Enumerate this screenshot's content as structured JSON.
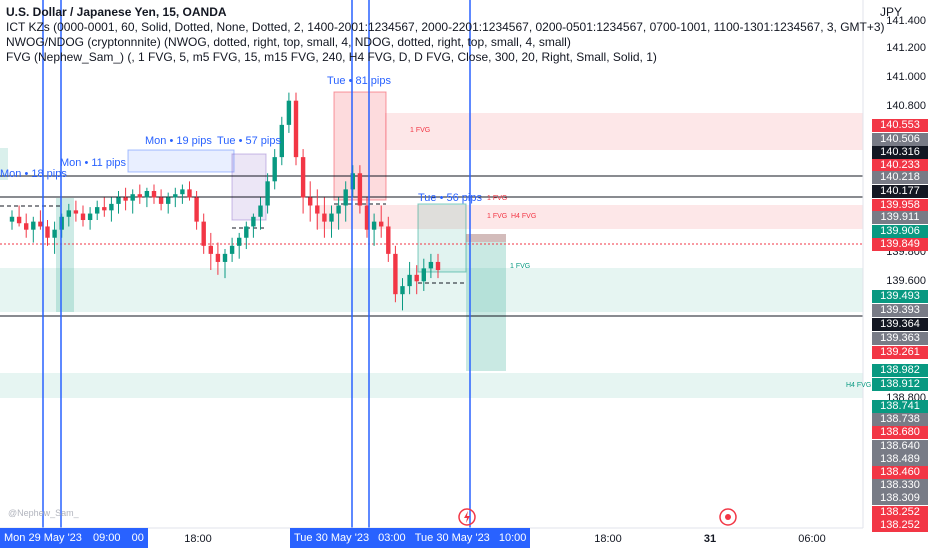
{
  "header": {
    "title": "U.S. Dollar / Japanese Yen, 15, OANDA",
    "line1": "ICT KZs (0000-0001, 60, Solid, Dotted, None, Dotted, 2, 1400-2001:1234567, 2000-2201:1234567, 0200-0501:1234567, 0700-1001, 1100-1301:1234567, 3, GMT+3)",
    "line2": "NWOG/NDOG (cryptonnnite) (NWOG, dotted, right, top, small, 4, NDOG, dotted, right, top, small, 4, small)",
    "line3": "FVG (Nephew_Sam_) (, 1 FVG, 5, m5 FVG, 15, m15 FVG, 240, H4 FVG, D, D FVG, Close, 300, 20, Right, Small, Solid, 1)",
    "currency": "JPY"
  },
  "watermark": "@Nephew_Sam_",
  "price_axis": {
    "ticks": [
      "141.400",
      "141.200",
      "141.000",
      "140.800",
      "139.800",
      "139.600",
      "138.800"
    ],
    "labels": [
      {
        "text": "140.553",
        "color": "#f23645"
      },
      {
        "text": "140.506",
        "color": "#787b86"
      },
      {
        "text": "140.316",
        "color": "#131722"
      },
      {
        "text": "140.233",
        "color": "#f23645"
      },
      {
        "text": "140.218",
        "color": "#787b86"
      },
      {
        "text": "140.177",
        "color": "#131722"
      },
      {
        "text": "139.958",
        "color": "#f23645"
      },
      {
        "text": "139.911",
        "color": "#787b86"
      },
      {
        "text": "139.906",
        "color": "#089981"
      },
      {
        "text": "139.849",
        "color": "#f23645"
      },
      {
        "text": "139.493",
        "color": "#089981"
      },
      {
        "text": "139.393",
        "color": "#787b86"
      },
      {
        "text": "139.364",
        "color": "#131722"
      },
      {
        "text": "139.363",
        "color": "#787b86"
      },
      {
        "text": "139.261",
        "color": "#f23645"
      },
      {
        "text": "138.982",
        "color": "#089981"
      },
      {
        "text": "138.912",
        "color": "#089981"
      },
      {
        "text": "138.741",
        "color": "#089981"
      },
      {
        "text": "138.738",
        "color": "#787b86"
      },
      {
        "text": "138.680",
        "color": "#f23645"
      },
      {
        "text": "138.640",
        "color": "#787b86"
      },
      {
        "text": "138.489",
        "color": "#787b86"
      },
      {
        "text": "138.460",
        "color": "#f23645"
      },
      {
        "text": "138.330",
        "color": "#787b86"
      },
      {
        "text": "138.309",
        "color": "#787b86"
      },
      {
        "text": "138.252",
        "color": "#f23645"
      },
      {
        "text": "138.252",
        "color": "#f23645"
      }
    ]
  },
  "time_axis": {
    "ticks": [
      "18:00",
      "18:00",
      "31",
      "06:00"
    ],
    "labels": [
      "Mon 29 May '23",
      "09:00",
      "00",
      "Tue 30 May '23",
      "03:00",
      "Tue 30 May '23",
      "10:00"
    ]
  },
  "annotations": [
    "Mon • 18 pips",
    "Mon • 11 pips",
    "Mon • 19 pips",
    "Tue • 57 pips",
    "Tue • 81 pips",
    "Tue • 56 pips"
  ],
  "fvg_labels": [
    "1 FVG",
    "1 FVG",
    "1 FVG",
    "H4 FVG",
    "1 FVG",
    "H4 FVG"
  ],
  "colors": {
    "up": "#089981",
    "down": "#f23645",
    "marker": "#2962ff"
  },
  "chart_data": {
    "type": "candlestick",
    "title": "U.S. Dollar / Japanese Yen, 15, OANDA",
    "ylim": [
      138.25,
      141.45
    ],
    "series": [
      {
        "name": "USDJPY",
        "ohlc": [
          [
            140.15,
            140.22,
            140.1,
            140.18
          ],
          [
            140.18,
            140.25,
            140.12,
            140.14
          ],
          [
            140.14,
            140.2,
            140.05,
            140.1
          ],
          [
            140.1,
            140.18,
            140.02,
            140.15
          ],
          [
            140.15,
            140.22,
            140.1,
            140.12
          ],
          [
            140.12,
            140.16,
            140.0,
            140.05
          ],
          [
            140.05,
            140.15,
            139.95,
            140.1
          ],
          [
            140.1,
            140.2,
            140.05,
            140.18
          ],
          [
            140.18,
            140.26,
            140.12,
            140.22
          ],
          [
            140.22,
            140.28,
            140.15,
            140.2
          ],
          [
            140.2,
            140.25,
            140.12,
            140.16
          ],
          [
            140.16,
            140.24,
            140.1,
            140.2
          ],
          [
            140.2,
            140.28,
            140.16,
            140.24
          ],
          [
            140.24,
            140.3,
            140.18,
            140.22
          ],
          [
            140.22,
            140.3,
            140.15,
            140.26
          ],
          [
            140.26,
            140.34,
            140.2,
            140.3
          ],
          [
            140.3,
            140.36,
            140.22,
            140.28
          ],
          [
            140.28,
            140.35,
            140.2,
            140.32
          ],
          [
            140.32,
            140.38,
            140.26,
            140.3
          ],
          [
            140.3,
            140.36,
            140.24,
            140.34
          ],
          [
            140.34,
            140.38,
            140.26,
            140.3
          ],
          [
            140.3,
            140.35,
            140.22,
            140.26
          ],
          [
            140.26,
            140.33,
            140.2,
            140.3
          ],
          [
            140.3,
            140.36,
            140.24,
            140.32
          ],
          [
            140.32,
            140.38,
            140.26,
            140.35
          ],
          [
            140.35,
            140.4,
            140.28,
            140.3
          ],
          [
            140.3,
            140.34,
            140.1,
            140.15
          ],
          [
            140.15,
            140.2,
            139.95,
            140.0
          ],
          [
            140.0,
            140.08,
            139.85,
            139.95
          ],
          [
            139.95,
            140.02,
            139.82,
            139.9
          ],
          [
            139.9,
            139.98,
            139.8,
            139.95
          ],
          [
            139.95,
            140.05,
            139.9,
            140.0
          ],
          [
            140.0,
            140.08,
            139.92,
            140.05
          ],
          [
            140.05,
            140.15,
            139.98,
            140.12
          ],
          [
            140.12,
            140.2,
            140.05,
            140.18
          ],
          [
            140.18,
            140.3,
            140.1,
            140.25
          ],
          [
            140.25,
            140.45,
            140.2,
            140.4
          ],
          [
            140.4,
            140.6,
            140.35,
            140.55
          ],
          [
            140.55,
            140.8,
            140.5,
            140.75
          ],
          [
            140.75,
            140.95,
            140.7,
            140.9
          ],
          [
            140.9,
            140.95,
            140.5,
            140.55
          ],
          [
            140.55,
            140.6,
            140.2,
            140.3
          ],
          [
            140.3,
            140.4,
            140.15,
            140.25
          ],
          [
            140.25,
            140.35,
            140.1,
            140.2
          ],
          [
            140.2,
            140.3,
            140.05,
            140.15
          ],
          [
            140.15,
            140.25,
            140.05,
            140.2
          ],
          [
            140.2,
            140.3,
            140.1,
            140.25
          ],
          [
            140.25,
            140.4,
            140.15,
            140.35
          ],
          [
            140.35,
            140.5,
            140.3,
            140.45
          ],
          [
            140.45,
            140.5,
            140.2,
            140.25
          ],
          [
            140.25,
            140.3,
            140.05,
            140.1
          ],
          [
            140.1,
            140.2,
            140.0,
            140.15
          ],
          [
            140.15,
            140.25,
            140.05,
            140.12
          ],
          [
            140.12,
            140.18,
            139.9,
            139.95
          ],
          [
            139.95,
            140.0,
            139.65,
            139.7
          ],
          [
            139.7,
            139.8,
            139.6,
            139.75
          ],
          [
            139.75,
            139.9,
            139.7,
            139.82
          ],
          [
            139.82,
            139.88,
            139.7,
            139.78
          ],
          [
            139.78,
            139.92,
            139.72,
            139.86
          ],
          [
            139.86,
            139.95,
            139.8,
            139.9
          ],
          [
            139.9,
            139.95,
            139.8,
            139.85
          ]
        ]
      }
    ]
  }
}
